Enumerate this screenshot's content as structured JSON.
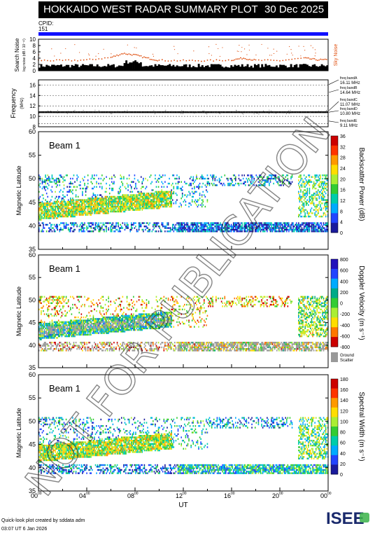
{
  "header": {
    "title": "HOKKAIDO WEST RADAR SUMMARY PLOT",
    "date": "30 Dec 2025"
  },
  "cpid": {
    "label": "CPID:",
    "value": "151"
  },
  "noise_panel": {
    "ylabel": "Search Noise",
    "ylabel_sub": "log noise (dB / 10⁻¹²) ",
    "sky_label": "Sky Noise",
    "ticks": [
      "10",
      "8",
      "6",
      "4",
      "2",
      "0"
    ]
  },
  "freq_panel": {
    "ylabel": "Frequency",
    "ylabel_sub": "(MHz)",
    "ticks": [
      "16",
      "14",
      "12",
      "10",
      "8"
    ],
    "bands": [
      {
        "name": "freq bandA",
        "value": "16.11 MHz"
      },
      {
        "name": "freq bandB",
        "value": "14.64 MHz"
      },
      {
        "name": "freq bandC",
        "value": "11.07 MHz"
      },
      {
        "name": "freq bandD",
        "value": "10.80 MHz"
      },
      {
        "name": "freq bandE",
        "value": "9.11 MHz"
      }
    ]
  },
  "panels": [
    {
      "beam": "Beam  1",
      "ylabel": "Magnetic Latitude",
      "ticks": [
        "60",
        "55",
        "50",
        "45",
        "40",
        "35"
      ],
      "cbar_label": "Backscatter Power (dB)",
      "cbar_ticks": [
        "36",
        "32",
        "28",
        "24",
        "20",
        "16",
        "12",
        "8",
        "4",
        "0"
      ]
    },
    {
      "beam": "Beam  1",
      "ylabel": "Magnetic Latitude",
      "ticks": [
        "60",
        "55",
        "50",
        "45",
        "40",
        "35"
      ],
      "cbar_label": "Doppler Velocity (m s⁻¹)",
      "cbar_ticks": [
        "800",
        "600",
        "400",
        "200",
        "0",
        "-200",
        "-400",
        "-600",
        "-800"
      ],
      "ground_label": "Ground Scatter"
    },
    {
      "beam": "Beam  1",
      "ylabel": "Magnetic Latitude",
      "ticks": [
        "60",
        "55",
        "50",
        "45",
        "40",
        "35"
      ],
      "cbar_label": "Spectral Width (m s⁻¹)",
      "cbar_ticks": [
        "180",
        "160",
        "140",
        "120",
        "100",
        "80",
        "60",
        "40",
        "20",
        "0"
      ]
    }
  ],
  "xaxis": {
    "label": "UT",
    "ticks": [
      "00",
      "04",
      "08",
      "12",
      "16",
      "20",
      "00"
    ],
    "tick_sup": "00"
  },
  "watermark": "NOT FOR PUBLICATION",
  "footer": {
    "line1": "Quick-look plot created by sddata adm",
    "line2": "03:07 UT  6 Jan 2026"
  },
  "logo_text": "ISEE",
  "chart_data": [
    {
      "type": "line",
      "title": "Search Noise",
      "series": [
        {
          "name": "Sky Noise",
          "color": "#e05010"
        }
      ],
      "ylim": [
        0,
        10
      ],
      "xlim_hours": [
        0,
        24
      ],
      "x": [
        0,
        2,
        4,
        6,
        7,
        8,
        9,
        10,
        12,
        14,
        16,
        17,
        18,
        20,
        22,
        23,
        24
      ],
      "values": [
        3.3,
        3.2,
        3.4,
        4.2,
        5.5,
        5.0,
        4.0,
        3.3,
        3.2,
        3.2,
        3.4,
        4.0,
        3.3,
        3.2,
        4.0,
        3.5,
        3.4
      ]
    },
    {
      "type": "line",
      "title": "Frequency",
      "ylim": [
        8,
        17
      ],
      "xlim_hours": [
        0,
        24
      ],
      "x": [
        0,
        24
      ],
      "values": [
        10.8,
        10.8
      ]
    },
    {
      "type": "heatmap",
      "title": "Backscatter Power (dB)",
      "ylabel": "Magnetic Latitude",
      "ylim": [
        35,
        60
      ],
      "xlim_hours": [
        0,
        24
      ],
      "zlim": [
        0,
        36
      ]
    },
    {
      "type": "heatmap",
      "title": "Doppler Velocity (m s-1)",
      "ylabel": "Magnetic Latitude",
      "ylim": [
        35,
        60
      ],
      "xlim_hours": [
        0,
        24
      ],
      "zlim": [
        -800,
        800
      ]
    },
    {
      "type": "heatmap",
      "title": "Spectral Width (m s-1)",
      "ylabel": "Magnetic Latitude",
      "ylim": [
        35,
        60
      ],
      "xlim_hours": [
        0,
        24
      ],
      "zlim": [
        0,
        200
      ]
    }
  ]
}
